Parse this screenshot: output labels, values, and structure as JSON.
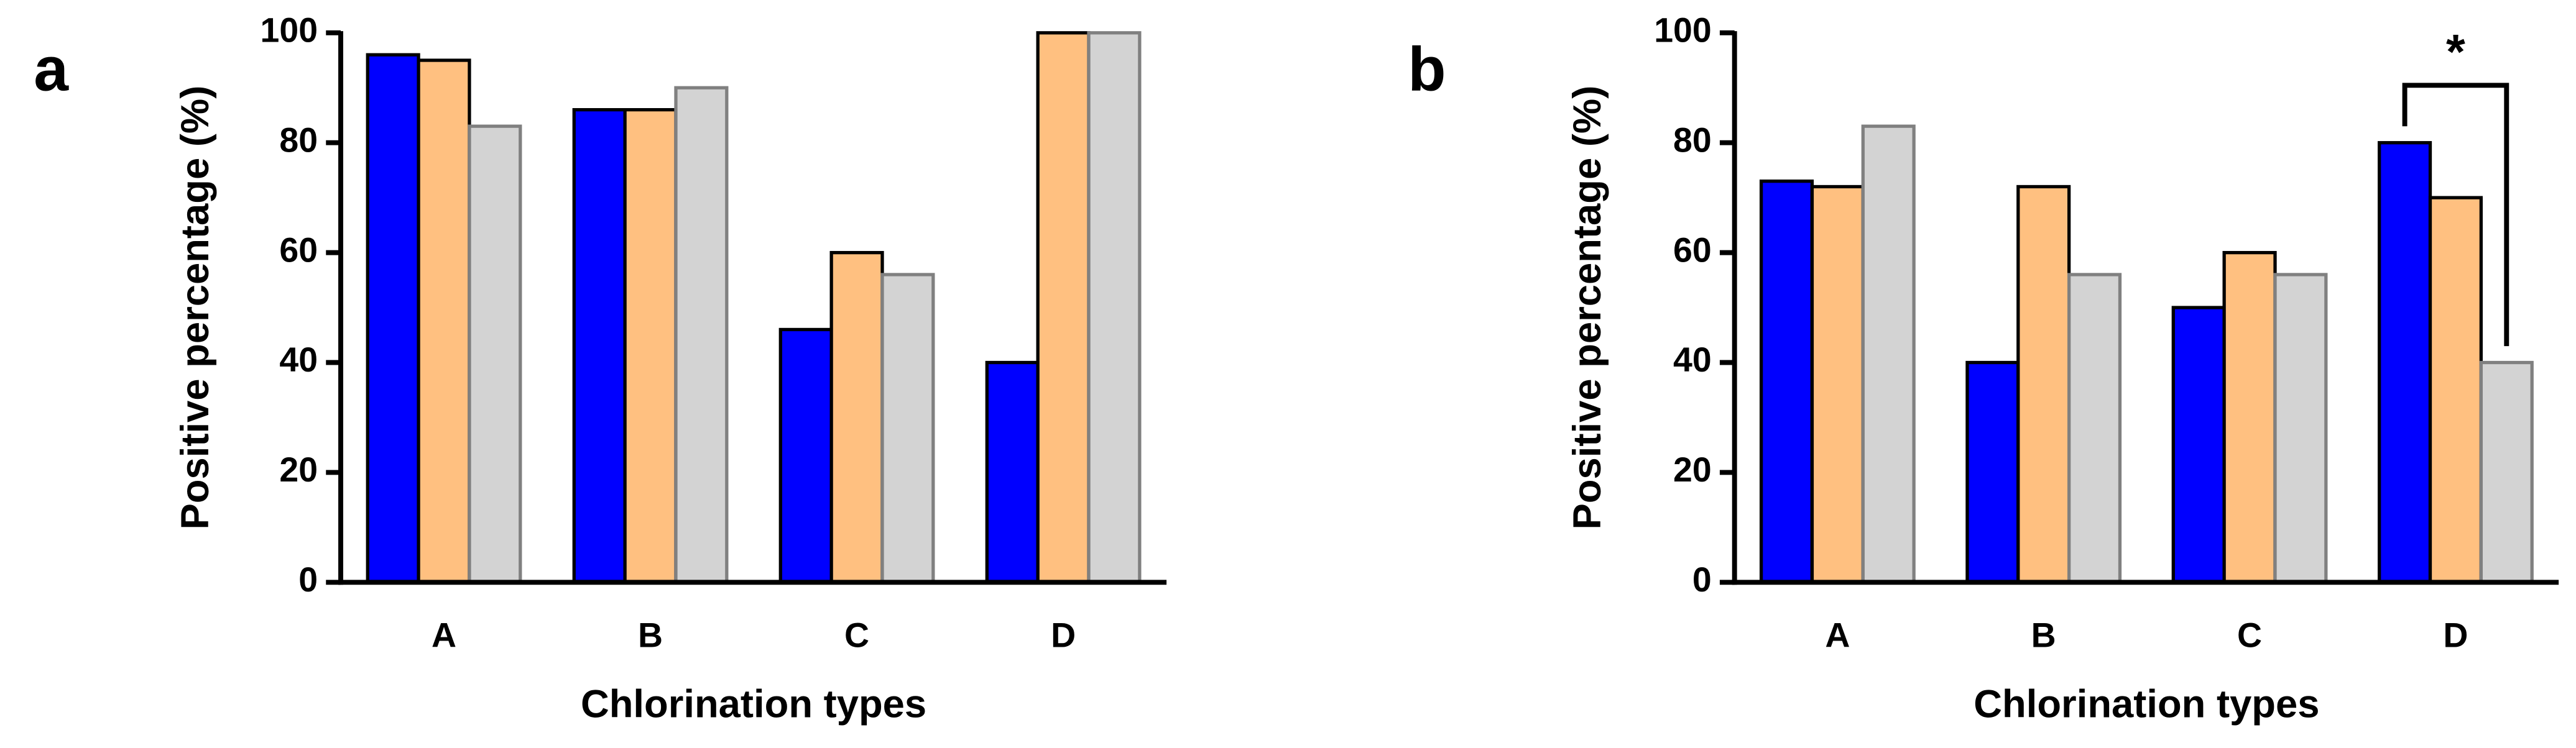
{
  "chart_data": [
    {
      "type": "bar",
      "panel_label": "a",
      "ylabel": "Positive percentage (%)",
      "xlabel": "Chlorination types",
      "categories": [
        "A",
        "B",
        "C",
        "D"
      ],
      "series": [
        {
          "color": "#0000ff",
          "edge_color": "#000000",
          "values": [
            96,
            86,
            46,
            40
          ]
        },
        {
          "color": "#ffc080",
          "edge_color": "#000000",
          "values": [
            95,
            86,
            60,
            100
          ]
        },
        {
          "color": "#d3d3d3",
          "edge_color": "#808080",
          "values": [
            83,
            90,
            56,
            100
          ]
        }
      ],
      "ylim": [
        0,
        100
      ],
      "yticks": [
        0,
        20,
        40,
        60,
        80,
        100
      ]
    },
    {
      "type": "bar",
      "panel_label": "b",
      "ylabel": "Positive percentage (%)",
      "xlabel": "Chlorination types",
      "categories": [
        "A",
        "B",
        "C",
        "D"
      ],
      "series": [
        {
          "color": "#0000ff",
          "edge_color": "#000000",
          "values": [
            73,
            40,
            50,
            80
          ]
        },
        {
          "color": "#ffc080",
          "edge_color": "#000000",
          "values": [
            72,
            72,
            60,
            70
          ]
        },
        {
          "color": "#d3d3d3",
          "edge_color": "#808080",
          "values": [
            83,
            56,
            56,
            40
          ]
        }
      ],
      "ylim": [
        0,
        100
      ],
      "yticks": [
        0,
        20,
        40,
        60,
        80,
        100
      ],
      "annotation": "*"
    }
  ]
}
